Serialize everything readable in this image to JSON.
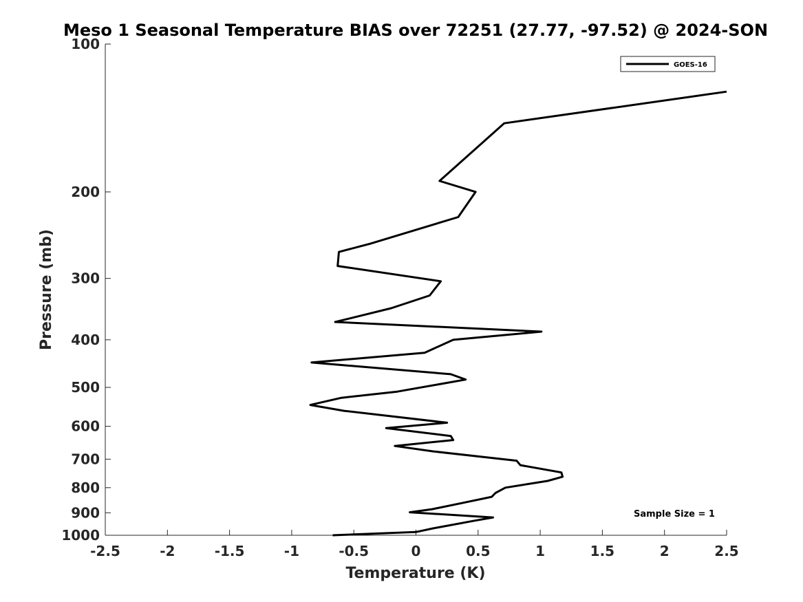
{
  "chart_data": {
    "type": "line",
    "title": "Meso 1 Seasonal Temperature BIAS over 72251 (27.77, -97.52) @ 2024-SON",
    "xlabel": "Temperature (K)",
    "ylabel": "Pressure (mb)",
    "xlim": [
      -2.5,
      2.5
    ],
    "ylim": [
      1000,
      100
    ],
    "y_scale": "log",
    "x_ticks": [
      -2.5,
      -2,
      -1.5,
      -1,
      -0.5,
      0,
      0.5,
      1,
      1.5,
      2,
      2.5
    ],
    "x_tick_labels": [
      "-2.5",
      "-2",
      "-1.5",
      "-1",
      "-0.5",
      "0",
      "0.5",
      "1",
      "1.5",
      "2",
      "2.5"
    ],
    "y_ticks": [
      100,
      200,
      300,
      400,
      500,
      600,
      700,
      800,
      900,
      1000
    ],
    "y_tick_labels": [
      "100",
      "200",
      "300",
      "400",
      "500",
      "600",
      "700",
      "800",
      "900",
      "1000"
    ],
    "grid": false,
    "legend_position": "top-right",
    "annotation": "Sample Size = 1",
    "series": [
      {
        "name": "GOES-16",
        "color": "#000000",
        "x": [
          2.5,
          0.71,
          0.19,
          0.48,
          0.34,
          -0.37,
          -0.62,
          -0.63,
          0.2,
          0.11,
          -0.2,
          -0.65,
          1.01,
          0.3,
          0.07,
          -0.84,
          0.28,
          0.4,
          -0.15,
          -0.6,
          -0.85,
          -0.58,
          0.25,
          -0.24,
          0.28,
          0.3,
          -0.17,
          0.14,
          0.81,
          0.84,
          1.17,
          1.18,
          1.06,
          0.72,
          0.64,
          0.61,
          0.37,
          0.13,
          -0.05,
          0.62,
          0.46,
          0.14,
          0,
          -0.67
        ],
        "y": [
          125,
          145,
          190,
          200,
          225,
          255,
          265,
          283,
          304,
          325,
          345,
          368,
          385,
          400,
          425,
          445,
          470,
          482,
          510,
          525,
          543,
          558,
          590,
          605,
          628,
          640,
          658,
          675,
          705,
          720,
          745,
          760,
          775,
          800,
          820,
          835,
          860,
          885,
          898,
          920,
          935,
          968,
          985,
          1000
        ]
      }
    ]
  }
}
